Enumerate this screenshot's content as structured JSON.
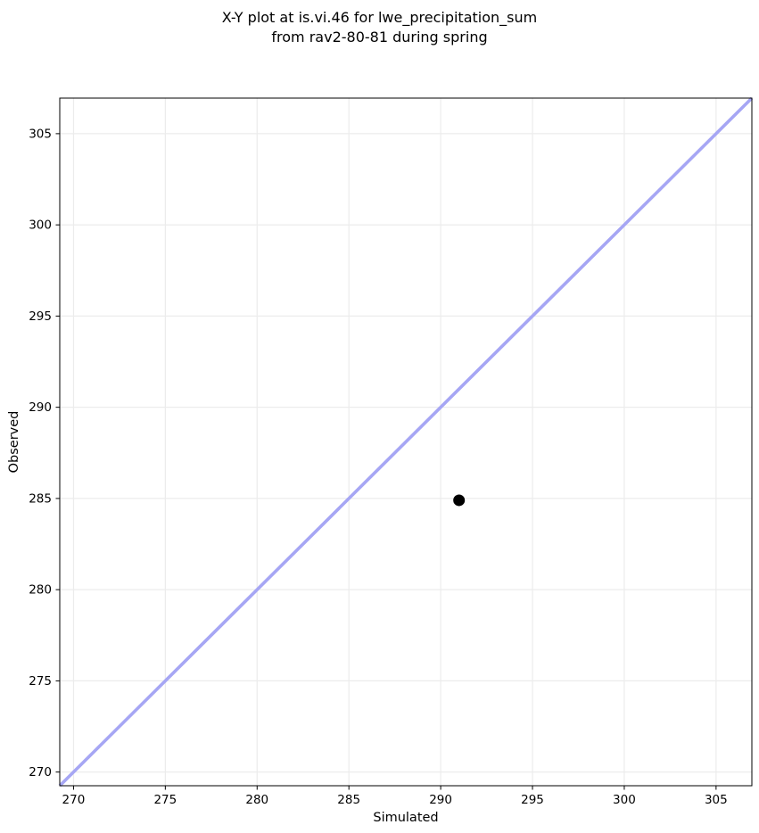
{
  "chart_data": {
    "type": "scatter",
    "title_line1": "X-Y plot at is.vi.46 for lwe_precipitation_sum",
    "title_line2": "from rav2-80-81 during spring",
    "xlabel": "Simulated",
    "ylabel": "Observed",
    "xlim": [
      269.25,
      306.95
    ],
    "ylim": [
      269.25,
      306.95
    ],
    "xticks": [
      270,
      275,
      280,
      285,
      290,
      295,
      300,
      305
    ],
    "yticks": [
      270,
      275,
      280,
      285,
      290,
      295,
      300,
      305
    ],
    "grid": true,
    "legend": "none",
    "points": [
      {
        "x": 291.0,
        "y": 284.9
      }
    ],
    "identity_line": {
      "x1": 269.25,
      "y1": 269.25,
      "x2": 306.95,
      "y2": 306.95
    },
    "colors": {
      "point": "#000000",
      "identity_line": "#a6a6f4",
      "grid": "#ececec",
      "spine": "#000000",
      "tick": "#000000",
      "text": "#000000",
      "background": "#ffffff"
    }
  }
}
